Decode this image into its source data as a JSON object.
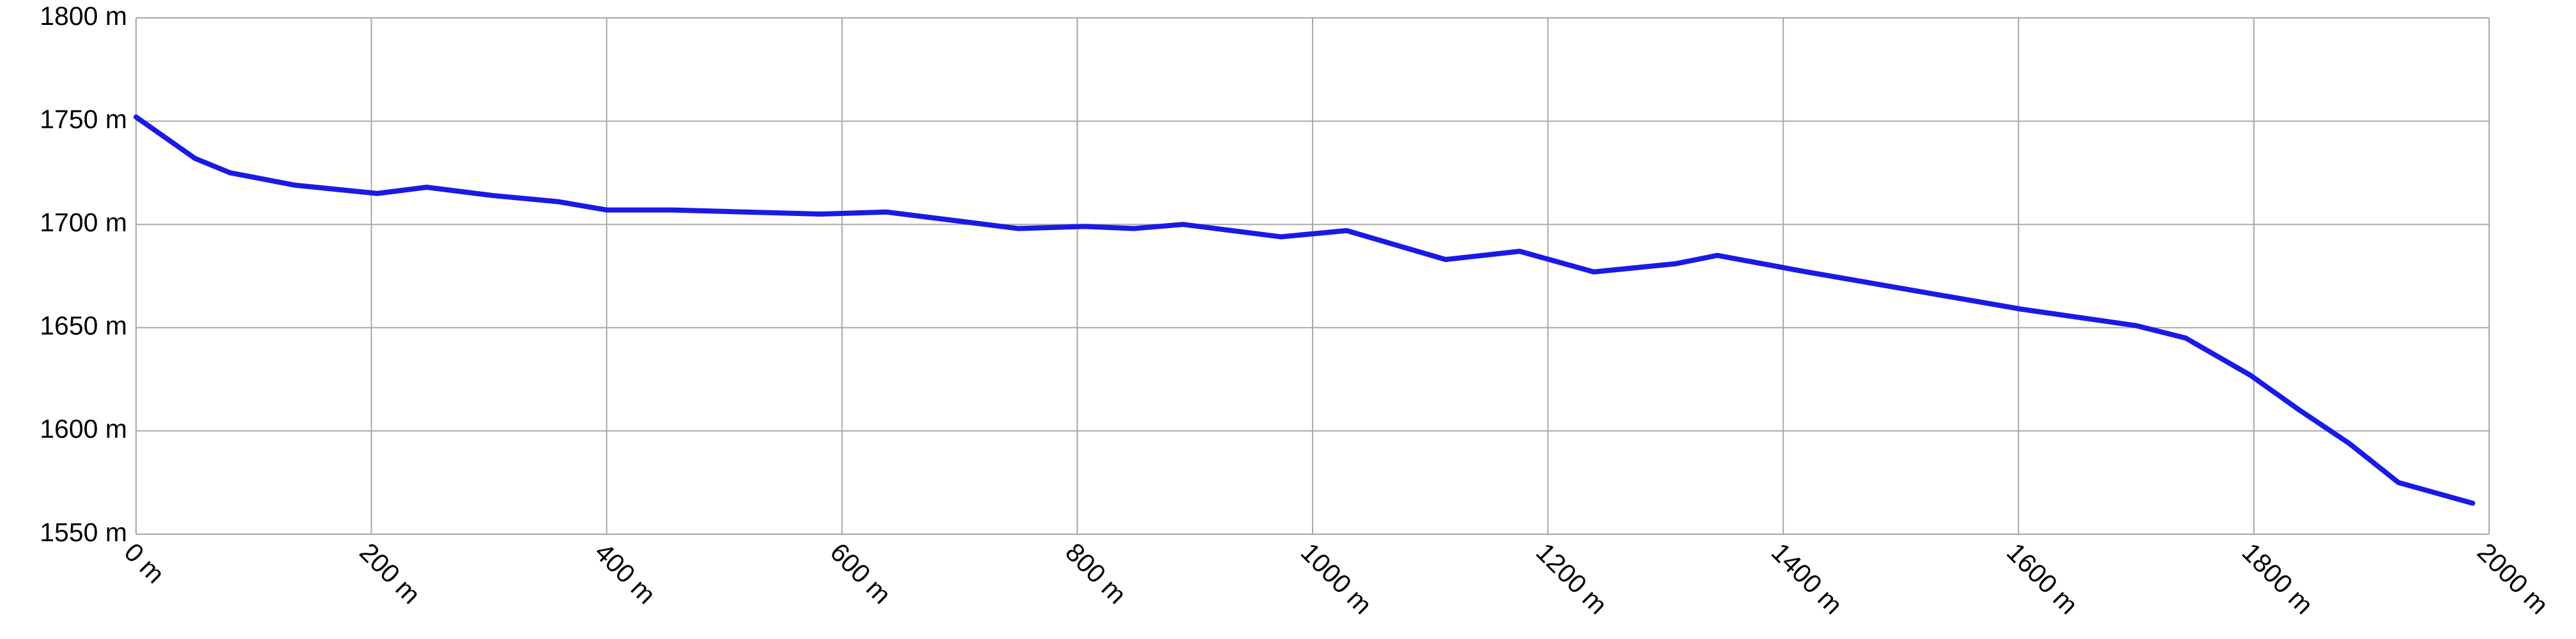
{
  "chart_data": {
    "type": "line",
    "x": [
      0,
      50,
      80,
      135,
      205,
      247,
      303,
      359,
      400,
      456,
      582,
      638,
      750,
      806,
      848,
      890,
      973,
      1029,
      1113,
      1176,
      1239,
      1309,
      1344,
      1420,
      1602,
      1700,
      1742,
      1797,
      1839,
      1881,
      1923,
      1986
    ],
    "series": [
      {
        "color": "#1a1ae6",
        "values": [
          1752,
          1732,
          1725,
          1719,
          1715,
          1718,
          1714,
          1711,
          1707,
          1707,
          1705,
          1706,
          1698,
          1699,
          1698,
          1700,
          1694,
          1697,
          1683,
          1687,
          1677,
          1681,
          1685,
          1677,
          1659,
          1651,
          1645,
          1627,
          1610,
          1594,
          1575,
          1565
        ]
      }
    ],
    "xlim": [
      0,
      2000
    ],
    "ylim": [
      1550,
      1800
    ],
    "xticks": [
      {
        "value": 0,
        "label": "0 m"
      },
      {
        "value": 200,
        "label": "200 m"
      },
      {
        "value": 400,
        "label": "400 m"
      },
      {
        "value": 600,
        "label": "600 m"
      },
      {
        "value": 800,
        "label": "800 m"
      },
      {
        "value": 1000,
        "label": "1000 m"
      },
      {
        "value": 1200,
        "label": "1200 m"
      },
      {
        "value": 1400,
        "label": "1400 m"
      },
      {
        "value": 1600,
        "label": "1600 m"
      },
      {
        "value": 1800,
        "label": "1800 m"
      },
      {
        "value": 2000,
        "label": "2000 m"
      }
    ],
    "yticks": [
      {
        "value": 1550,
        "label": "1550 m"
      },
      {
        "value": 1600,
        "label": "1600 m"
      },
      {
        "value": 1650,
        "label": "1650 m"
      },
      {
        "value": 1700,
        "label": "1700 m"
      },
      {
        "value": 1750,
        "label": "1750 m"
      },
      {
        "value": 1800,
        "label": "1800 m"
      }
    ],
    "grid": true
  }
}
